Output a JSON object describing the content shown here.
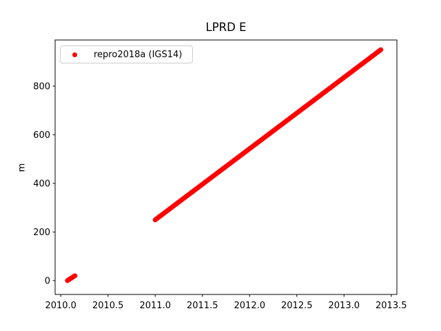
{
  "figure": {
    "background": "#ffffff"
  },
  "legend": {
    "label": "repro2018a (IGS14)",
    "marker": "red-dot",
    "marker_color": "#ff0000",
    "position": "upper left",
    "border_color": "#cccccc"
  },
  "chart_data": {
    "type": "scatter",
    "title": "LPRD E",
    "xlabel": "",
    "ylabel": "m",
    "xlim": [
      2009.94,
      2013.56
    ],
    "ylim": [
      -57,
      990
    ],
    "x_ticks": [
      2010.0,
      2010.5,
      2011.0,
      2011.5,
      2012.0,
      2012.5,
      2013.0,
      2013.5
    ],
    "x_tick_labels": [
      "2010.0",
      "2010.5",
      "2011.0",
      "2011.5",
      "2012.0",
      "2012.5",
      "2013.0",
      "2013.5"
    ],
    "y_ticks": [
      0,
      200,
      400,
      600,
      800
    ],
    "y_tick_labels": [
      "0",
      "200",
      "400",
      "600",
      "800"
    ],
    "grid": false,
    "legend_position": "upper left",
    "series": [
      {
        "name": "repro2018a (IGS14)",
        "color": "#ff0000",
        "marker": "dot",
        "segments": [
          {
            "x_start": 2010.07,
            "y_start": 0,
            "x_end": 2010.15,
            "y_end": 20,
            "note": "small dense cluster of points"
          },
          {
            "x_start": 2011.0,
            "y_start": 250,
            "x_end": 2013.39,
            "y_end": 950,
            "note": "continuous dense linear trend, data gap before 2011"
          }
        ]
      }
    ]
  }
}
